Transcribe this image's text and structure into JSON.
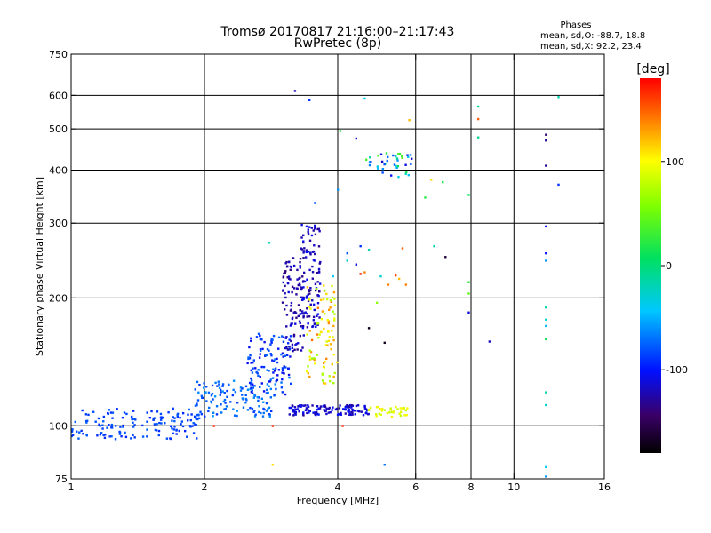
{
  "chart_data": {
    "type": "scatter",
    "title": "Tromsø 20170817 21:16:00–21:17:43",
    "subtitle": "RwPretec (8p)",
    "xlabel": "Frequency [MHz]",
    "ylabel": "Stationary phase Virtual Height [km]",
    "x_scale": "log",
    "y_scale": "log",
    "xlim": [
      1,
      16
    ],
    "ylim": [
      75,
      750
    ],
    "x_ticks": [
      1,
      2,
      4,
      6,
      8,
      10,
      16
    ],
    "y_ticks": [
      75,
      100,
      200,
      300,
      400,
      500,
      600,
      750
    ],
    "x_tick_labels": [
      "1",
      "2",
      "4",
      "6",
      "8",
      "10",
      "16"
    ],
    "y_tick_labels": [
      "75",
      "100",
      "200",
      "300",
      "400",
      "500",
      "600",
      "750"
    ],
    "x_grid": [
      2,
      4,
      6,
      8,
      10
    ],
    "y_grid": [
      100,
      200,
      300,
      400,
      500,
      600
    ],
    "grid": true,
    "phases": {
      "title": "Phases",
      "line_o": "mean, sd,O: -88.7, 18.8",
      "line_x": "mean, sd,X:  92.2, 23.4"
    },
    "colorbar": {
      "label": "[deg]",
      "min": -180,
      "max": 180,
      "ticks": [
        100,
        0,
        -100
      ],
      "tick_labels": [
        "100",
        "0",
        "-100"
      ]
    },
    "clusters": [
      {
        "x0": 1.0,
        "x1": 1.95,
        "y0": 93,
        "y1": 110,
        "phase0": -95,
        "phase1": -75,
        "n": 150
      },
      {
        "x0": 1.9,
        "x1": 2.9,
        "y0": 105,
        "y1": 128,
        "phase0": -90,
        "phase1": -60,
        "n": 130
      },
      {
        "x0": 2.5,
        "x1": 3.15,
        "y0": 118,
        "y1": 165,
        "phase0": -110,
        "phase1": -70,
        "n": 110
      },
      {
        "x0": 3.0,
        "x1": 3.35,
        "y0": 150,
        "y1": 250,
        "phase0": -140,
        "phase1": -110,
        "n": 100
      },
      {
        "x0": 3.3,
        "x1": 3.65,
        "y0": 170,
        "y1": 300,
        "phase0": -135,
        "phase1": -100,
        "n": 110
      },
      {
        "x0": 3.4,
        "x1": 4.0,
        "y0": 125,
        "y1": 215,
        "phase0": 60,
        "phase1": 145,
        "n": 90
      },
      {
        "x0": 3.1,
        "x1": 4.7,
        "y0": 106,
        "y1": 112,
        "phase0": -130,
        "phase1": -100,
        "n": 120
      },
      {
        "x0": 4.6,
        "x1": 5.8,
        "y0": 105,
        "y1": 111,
        "phase0": 75,
        "phase1": 110,
        "n": 35
      },
      {
        "x0": 4.6,
        "x1": 5.9,
        "y0": 385,
        "y1": 440,
        "phase0": -120,
        "phase1": 40,
        "n": 40
      }
    ],
    "points": [
      {
        "x": 3.2,
        "y": 615,
        "phase": -120
      },
      {
        "x": 3.45,
        "y": 585,
        "phase": -90
      },
      {
        "x": 4.6,
        "y": 590,
        "phase": -40
      },
      {
        "x": 5.8,
        "y": 525,
        "phase": 120
      },
      {
        "x": 8.3,
        "y": 565,
        "phase": -10
      },
      {
        "x": 8.3,
        "y": 528,
        "phase": 150
      },
      {
        "x": 8.3,
        "y": 478,
        "phase": -10
      },
      {
        "x": 12.6,
        "y": 595,
        "phase": -20
      },
      {
        "x": 11.8,
        "y": 485,
        "phase": -140
      },
      {
        "x": 11.8,
        "y": 470,
        "phase": -130
      },
      {
        "x": 11.8,
        "y": 410,
        "phase": -130
      },
      {
        "x": 12.6,
        "y": 370,
        "phase": -90
      },
      {
        "x": 4.05,
        "y": 495,
        "phase": 20
      },
      {
        "x": 4.4,
        "y": 475,
        "phase": -110
      },
      {
        "x": 3.55,
        "y": 335,
        "phase": -80
      },
      {
        "x": 4.0,
        "y": 360,
        "phase": -60
      },
      {
        "x": 6.5,
        "y": 380,
        "phase": 110
      },
      {
        "x": 6.9,
        "y": 375,
        "phase": 20
      },
      {
        "x": 7.9,
        "y": 350,
        "phase": 10
      },
      {
        "x": 6.3,
        "y": 345,
        "phase": 20
      },
      {
        "x": 11.8,
        "y": 295,
        "phase": -100
      },
      {
        "x": 11.8,
        "y": 255,
        "phase": -100
      },
      {
        "x": 11.8,
        "y": 245,
        "phase": -60
      },
      {
        "x": 2.8,
        "y": 270,
        "phase": -20
      },
      {
        "x": 4.2,
        "y": 255,
        "phase": -80
      },
      {
        "x": 4.5,
        "y": 265,
        "phase": -90
      },
      {
        "x": 4.7,
        "y": 260,
        "phase": -20
      },
      {
        "x": 5.6,
        "y": 262,
        "phase": 150
      },
      {
        "x": 6.6,
        "y": 265,
        "phase": -20
      },
      {
        "x": 7.0,
        "y": 250,
        "phase": -160
      },
      {
        "x": 4.2,
        "y": 245,
        "phase": -30
      },
      {
        "x": 4.4,
        "y": 240,
        "phase": -110
      },
      {
        "x": 4.6,
        "y": 230,
        "phase": 140
      },
      {
        "x": 4.5,
        "y": 228,
        "phase": 170
      },
      {
        "x": 5.4,
        "y": 226,
        "phase": 160
      },
      {
        "x": 5.0,
        "y": 225,
        "phase": -30
      },
      {
        "x": 5.5,
        "y": 222,
        "phase": 120
      },
      {
        "x": 3.9,
        "y": 225,
        "phase": -40
      },
      {
        "x": 5.2,
        "y": 215,
        "phase": 140
      },
      {
        "x": 5.7,
        "y": 215,
        "phase": 140
      },
      {
        "x": 7.9,
        "y": 218,
        "phase": 20
      },
      {
        "x": 7.9,
        "y": 205,
        "phase": 40
      },
      {
        "x": 4.7,
        "y": 170,
        "phase": -170
      },
      {
        "x": 4.9,
        "y": 195,
        "phase": 60
      },
      {
        "x": 5.1,
        "y": 157,
        "phase": -170
      },
      {
        "x": 7.9,
        "y": 185,
        "phase": -110
      },
      {
        "x": 8.8,
        "y": 158,
        "phase": -120
      },
      {
        "x": 11.8,
        "y": 190,
        "phase": -20
      },
      {
        "x": 11.8,
        "y": 178,
        "phase": -30
      },
      {
        "x": 11.8,
        "y": 172,
        "phase": -50
      },
      {
        "x": 11.8,
        "y": 160,
        "phase": 10
      },
      {
        "x": 11.8,
        "y": 120,
        "phase": -20
      },
      {
        "x": 11.8,
        "y": 112,
        "phase": -30
      },
      {
        "x": 2.85,
        "y": 100,
        "phase": 170
      },
      {
        "x": 2.1,
        "y": 100,
        "phase": 170
      },
      {
        "x": 4.1,
        "y": 100,
        "phase": 170
      },
      {
        "x": 2.85,
        "y": 81,
        "phase": 110
      },
      {
        "x": 5.1,
        "y": 81,
        "phase": -70
      },
      {
        "x": 11.8,
        "y": 80,
        "phase": -40
      },
      {
        "x": 11.8,
        "y": 76,
        "phase": -60
      }
    ]
  }
}
